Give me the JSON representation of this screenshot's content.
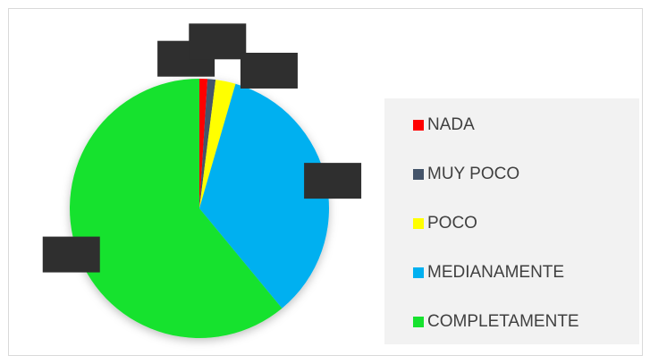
{
  "chart_data": {
    "type": "pie",
    "categories": [
      "NADA",
      "MUY POCO",
      "POCO",
      "MEDIANAMENTE",
      "COMPLETAMENTE"
    ],
    "values": [
      1,
      1,
      2.5,
      34.5,
      61
    ],
    "colors": [
      "#ff0000",
      "#44546a",
      "#ffff00",
      "#00b0f0",
      "#17e22f"
    ],
    "legend": "right"
  }
}
